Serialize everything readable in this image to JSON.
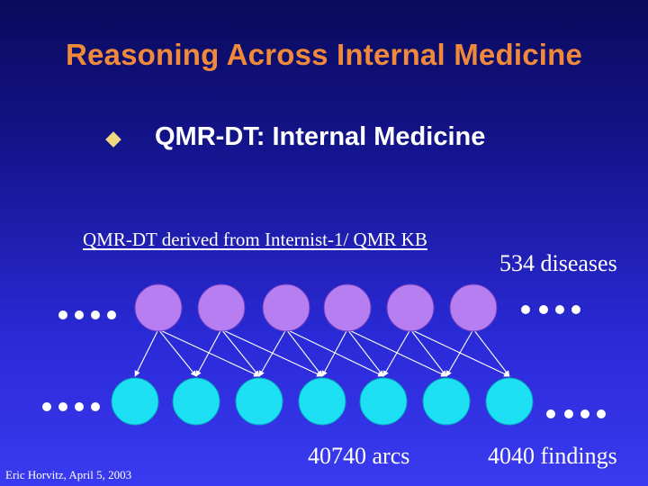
{
  "slide": {
    "title": "Reasoning Across Internal Medicine",
    "bullet": "QMR-DT: Internal Medicine",
    "derived_note": "QMR-DT derived from Internist-1/ QMR KB",
    "diseases_label": "534 diseases",
    "arcs_label": "40740 arcs",
    "findings_label": "4040 findings",
    "footer": "Eric Horvitz, April 5, 2003"
  },
  "network": {
    "disease_node_color": "#b77ef2",
    "finding_node_color": "#1ee0f5",
    "ellipsis_color": "#ffffff",
    "disease_count_shown": 6,
    "finding_count_shown": 7
  },
  "colors": {
    "title": "#f08a3a",
    "bullet": "#f0d880",
    "text": "#ffffff"
  }
}
